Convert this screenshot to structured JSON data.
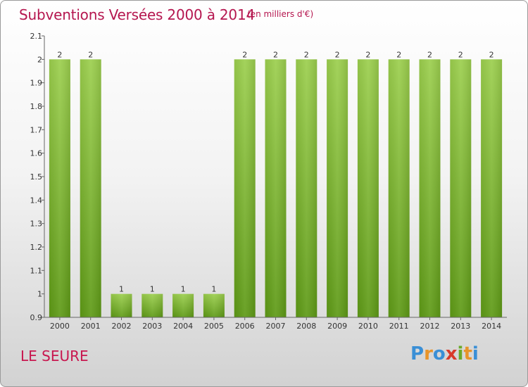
{
  "header": {
    "title": "Subventions Versées 2000 à 2014",
    "subtitle": "(en milliers d'€)"
  },
  "footer": {
    "place": "LE SEURE",
    "logo_letters": [
      "P",
      "r",
      "o",
      "x",
      "i",
      "t",
      "i"
    ],
    "logo_colors": [
      "#3a8fd6",
      "#e8942a",
      "#3a8fd6",
      "#d83a2a",
      "#6aaa2a",
      "#e8942a",
      "#3a8fd6"
    ]
  },
  "chart_data": {
    "type": "bar",
    "categories": [
      "2000",
      "2001",
      "2002",
      "2003",
      "2004",
      "2005",
      "2006",
      "2007",
      "2008",
      "2009",
      "2010",
      "2011",
      "2012",
      "2013",
      "2014"
    ],
    "values": [
      2,
      2,
      1,
      1,
      1,
      1,
      2,
      2,
      2,
      2,
      2,
      2,
      2,
      2,
      2
    ],
    "data_labels": [
      "2",
      "2",
      "1",
      "1",
      "1",
      "1",
      "2",
      "2",
      "2",
      "2",
      "2",
      "2",
      "2",
      "2",
      "2"
    ],
    "ylim": [
      0.9,
      2.1
    ],
    "yticks": [
      "0.9",
      "1",
      "1.1",
      "1.2",
      "1.3",
      "1.4",
      "1.5",
      "1.6",
      "1.7",
      "1.8",
      "1.9",
      "2",
      "2.1"
    ],
    "ytick_values": [
      0.9,
      1.0,
      1.1,
      1.2,
      1.3,
      1.4,
      1.5,
      1.6,
      1.7,
      1.8,
      1.9,
      2.0,
      2.1
    ],
    "xlabel": "",
    "ylabel": "",
    "grid": false,
    "bar_color_top": "#9ccf4e",
    "bar_color_bottom": "#5e9a16"
  }
}
